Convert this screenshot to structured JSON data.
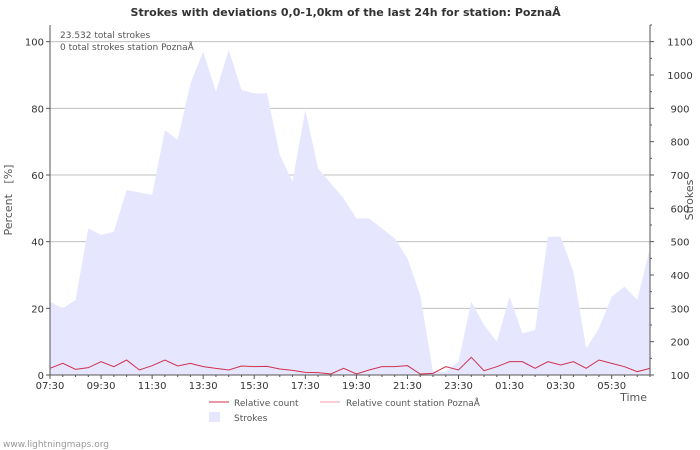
{
  "chart_data": {
    "type": "area",
    "title": "Strokes with deviations 0,0-1,0km of the last 24h for station: PoznaÅ",
    "annotations": [
      "23.532 total strokes",
      "0 total strokes station PoznaÅ"
    ],
    "ylabel_left": "Percent   [%]",
    "ylabel_right": "Strokes",
    "xlabel": "Time",
    "ylim_left": [
      0,
      105
    ],
    "ylim_right": [
      100,
      1150
    ],
    "yticks_left": [
      "0",
      "20",
      "40",
      "60",
      "80",
      "100"
    ],
    "yticks_right": [
      "100",
      "200",
      "300",
      "400",
      "500",
      "600",
      "700",
      "800",
      "900",
      "1000",
      "1100"
    ],
    "x_tick_labels": [
      "07:30",
      "09:30",
      "11:30",
      "13:30",
      "15:30",
      "17:30",
      "19:30",
      "21:30",
      "23:30",
      "01:30",
      "03:30",
      "05:30"
    ],
    "x_count": 48,
    "grid": true,
    "legend": [
      {
        "name": "Relative count",
        "type": "line",
        "color": "#d0314c"
      },
      {
        "name": "Relative count station PoznaÅ",
        "type": "line",
        "color": "#f0a0a8"
      },
      {
        "name": "Strokes",
        "type": "area",
        "color": "#e6e6ff"
      }
    ],
    "series": [
      {
        "name": "Strokes",
        "axis": "right",
        "values": [
          320,
          300,
          325,
          540,
          520,
          530,
          655,
          648,
          640,
          835,
          805,
          975,
          1070,
          950,
          1075,
          955,
          945,
          945,
          760,
          680,
          895,
          720,
          675,
          630,
          570,
          570,
          540,
          510,
          450,
          340,
          110,
          110,
          140,
          320,
          250,
          200,
          335,
          225,
          235,
          515,
          515,
          410,
          180,
          240,
          335,
          365,
          325,
          480
        ]
      },
      {
        "name": "Relative count",
        "axis": "left",
        "values": [
          2,
          3.5,
          1.7,
          2.2,
          4,
          2.5,
          4.5,
          1.5,
          2.8,
          4.5,
          2.7,
          3.5,
          2.5,
          2,
          1.5,
          2.7,
          2.5,
          2.6,
          1.8,
          1.4,
          0.8,
          0.7,
          0.3,
          2,
          0.3,
          1.5,
          2.5,
          2.5,
          2.8,
          0.3,
          0.5,
          2.5,
          1.5,
          5.3,
          1.3,
          2.5,
          4,
          4,
          2,
          4,
          3,
          4,
          2,
          4.5,
          3.5,
          2.5,
          1,
          2
        ]
      },
      {
        "name": "Relative count station PoznaÅ",
        "axis": "left",
        "values": []
      }
    ]
  },
  "footer": {
    "credit": "www.lightningmaps.org"
  }
}
